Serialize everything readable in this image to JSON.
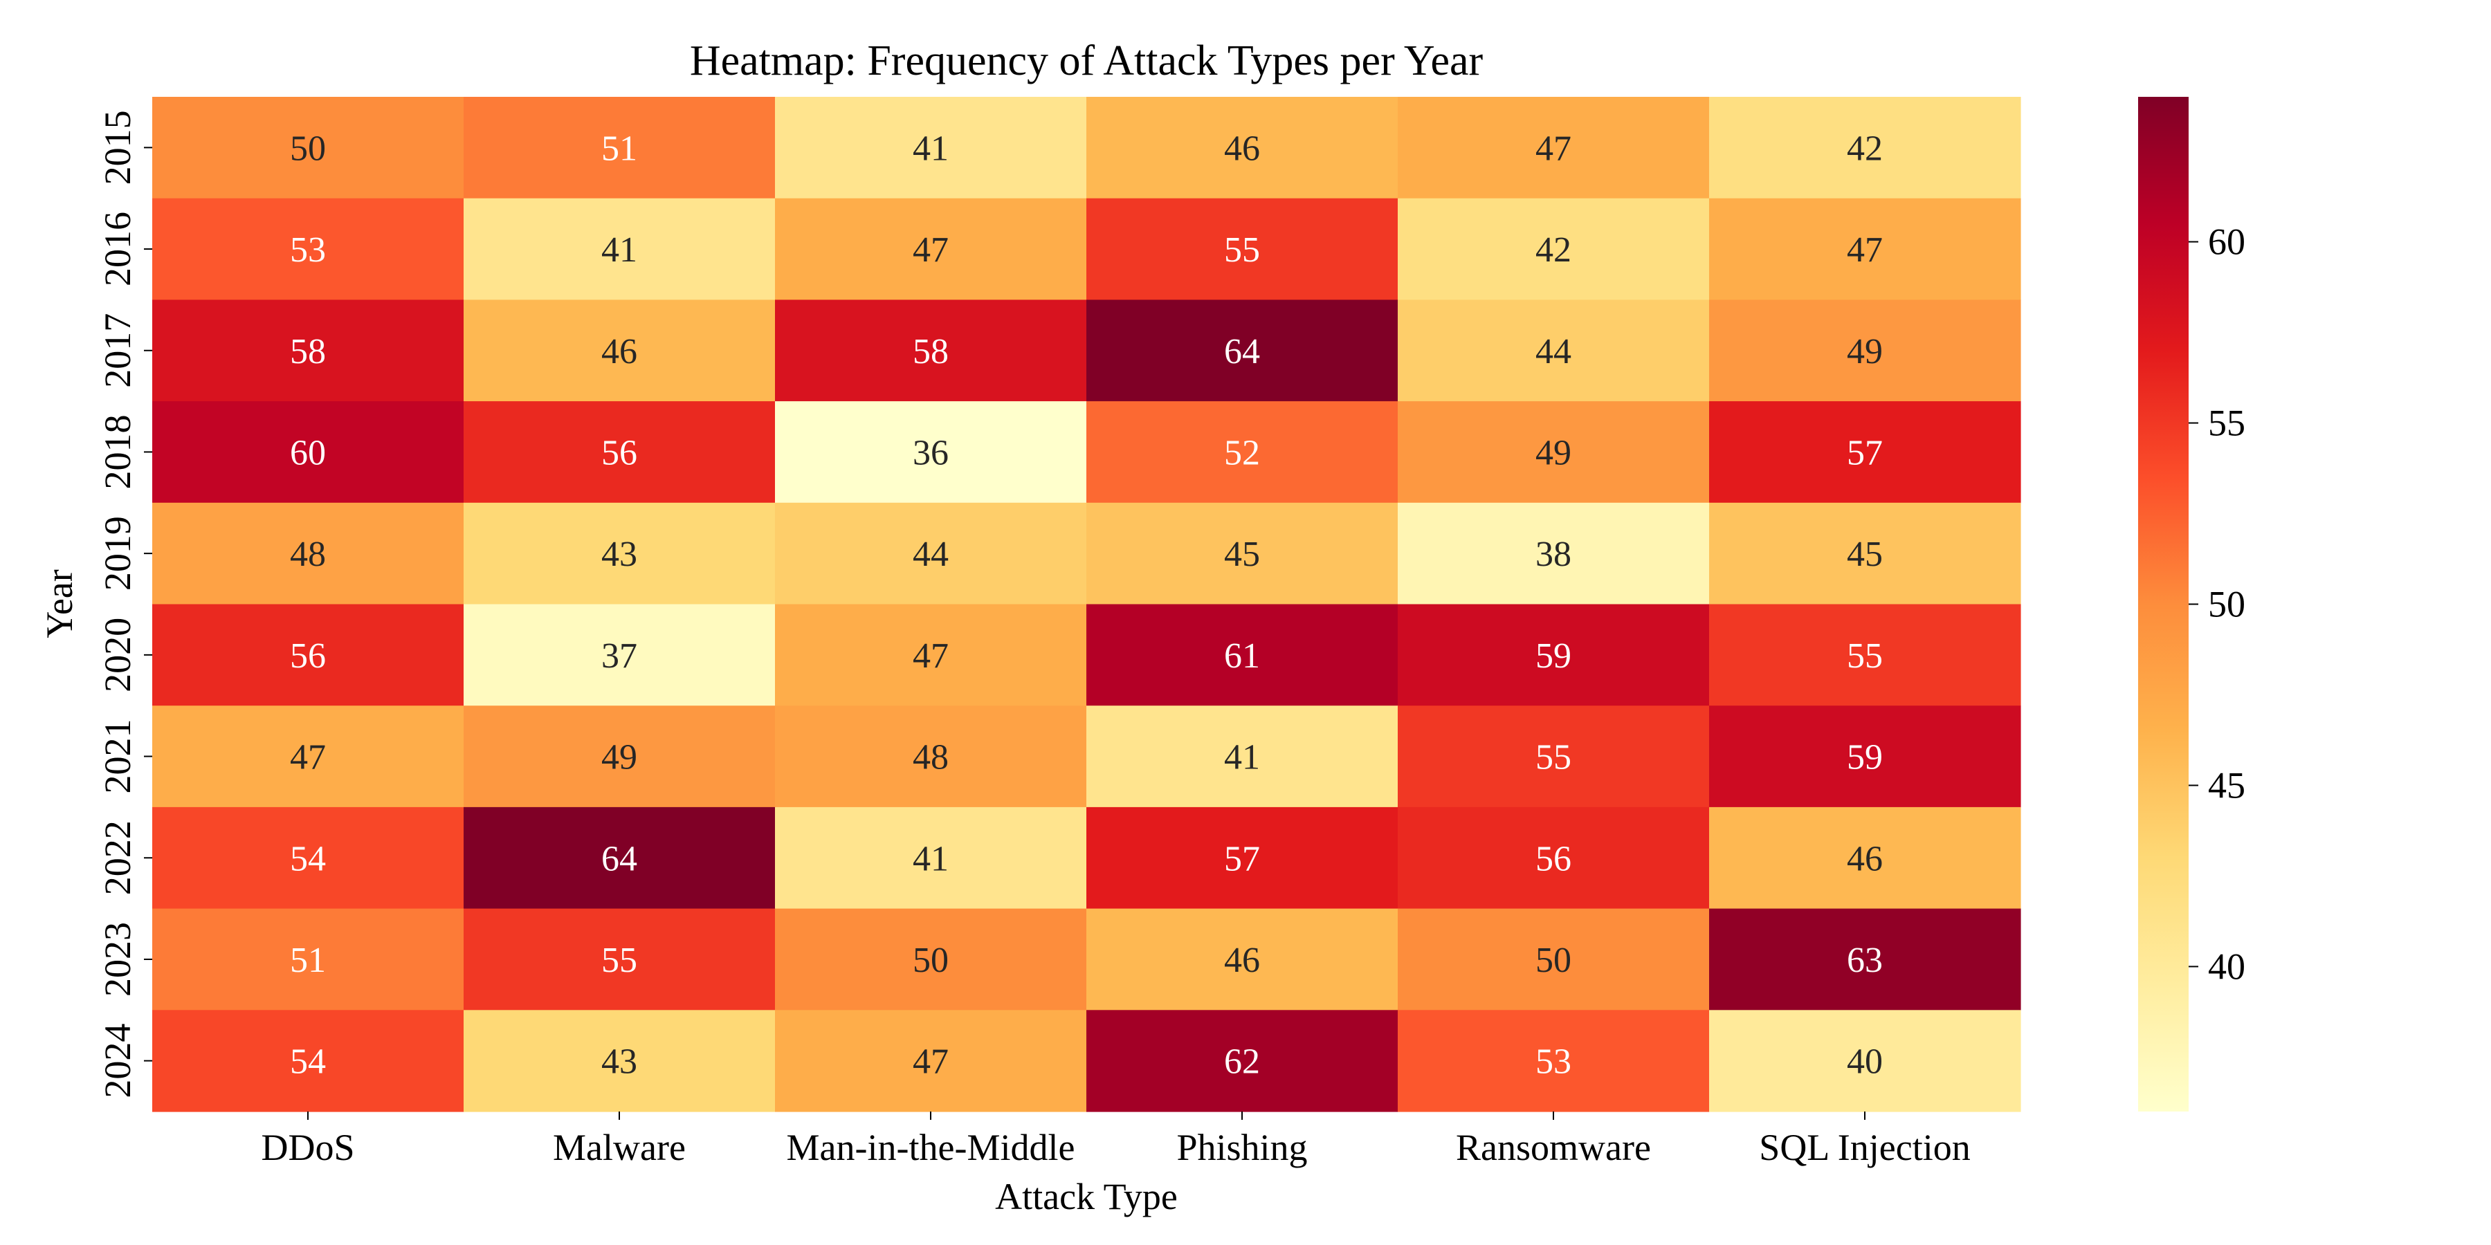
{
  "chart_data": {
    "type": "heatmap",
    "title": "Heatmap: Frequency of Attack Types per Year",
    "xlabel": "Attack Type",
    "ylabel": "Year",
    "x_categories": [
      "DDoS",
      "Malware",
      "Man-in-the-Middle",
      "Phishing",
      "Ransomware",
      "SQL Injection"
    ],
    "y_categories": [
      "2015",
      "2016",
      "2017",
      "2018",
      "2019",
      "2020",
      "2021",
      "2022",
      "2023",
      "2024"
    ],
    "values": [
      [
        50,
        51,
        41,
        46,
        47,
        42
      ],
      [
        53,
        41,
        47,
        55,
        42,
        47
      ],
      [
        58,
        46,
        58,
        64,
        44,
        49
      ],
      [
        60,
        56,
        36,
        52,
        49,
        57
      ],
      [
        48,
        43,
        44,
        45,
        38,
        45
      ],
      [
        56,
        37,
        47,
        61,
        59,
        55
      ],
      [
        47,
        49,
        48,
        41,
        55,
        59
      ],
      [
        54,
        64,
        41,
        57,
        56,
        46
      ],
      [
        51,
        55,
        50,
        46,
        50,
        63
      ],
      [
        54,
        43,
        47,
        62,
        53,
        40
      ]
    ],
    "colormap": "YlOrRd",
    "colorbar": {
      "vmin": 36,
      "vmax": 64,
      "ticks": [
        40,
        45,
        50,
        55,
        60
      ]
    },
    "annotations": true
  }
}
